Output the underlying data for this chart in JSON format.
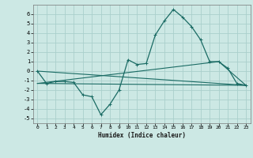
{
  "title": "",
  "xlabel": "Humidex (Indice chaleur)",
  "ylabel": "",
  "bg_color": "#cce8e4",
  "grid_color": "#aacfcc",
  "line_color": "#1a6b64",
  "xlim": [
    -0.5,
    23.5
  ],
  "ylim": [
    -5.5,
    7.0
  ],
  "xticks": [
    0,
    1,
    2,
    3,
    4,
    5,
    6,
    7,
    8,
    9,
    10,
    11,
    12,
    13,
    14,
    15,
    16,
    17,
    18,
    19,
    20,
    21,
    22,
    23
  ],
  "yticks": [
    -5,
    -4,
    -3,
    -2,
    -1,
    0,
    1,
    2,
    3,
    4,
    5,
    6
  ],
  "series1_x": [
    0,
    1,
    2,
    3,
    4,
    5,
    6,
    7,
    8,
    9,
    10,
    11,
    12,
    13,
    14,
    15,
    16,
    17,
    18,
    19,
    20,
    21,
    22,
    23
  ],
  "series1_y": [
    0.0,
    -1.3,
    -1.1,
    -1.1,
    -1.2,
    -2.5,
    -2.7,
    -4.6,
    -3.5,
    -2.0,
    1.2,
    0.7,
    0.8,
    3.8,
    5.3,
    6.5,
    5.7,
    4.7,
    3.3,
    1.0,
    1.0,
    0.3,
    -1.3,
    -1.5
  ],
  "series2_x": [
    0,
    23
  ],
  "series2_y": [
    0.0,
    -1.5
  ],
  "series3_x": [
    0,
    23
  ],
  "series3_y": [
    -1.3,
    -1.5
  ],
  "series4_x": [
    0,
    20,
    23
  ],
  "series4_y": [
    -1.3,
    1.0,
    -1.5
  ]
}
